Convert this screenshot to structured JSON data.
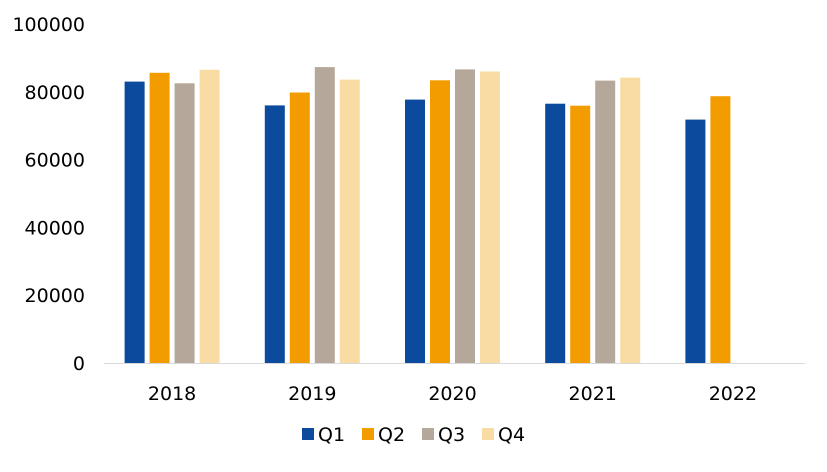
{
  "chart_data": {
    "type": "bar",
    "categories": [
      "2018",
      "2019",
      "2020",
      "2021",
      "2022"
    ],
    "series": [
      {
        "name": "Q1",
        "color": "#0b4a9c",
        "values": [
          83000,
          76000,
          77700,
          76500,
          71800
        ]
      },
      {
        "name": "Q2",
        "color": "#f39c00",
        "values": [
          85600,
          79800,
          83400,
          75900,
          78700
        ]
      },
      {
        "name": "Q3",
        "color": "#b5a89b",
        "values": [
          82500,
          87300,
          86600,
          83300,
          null
        ]
      },
      {
        "name": "Q4",
        "color": "#f9dca3",
        "values": [
          86500,
          83600,
          86000,
          84200,
          null
        ]
      }
    ],
    "ylim": [
      0,
      100000
    ],
    "yticks": [
      "0",
      "20000",
      "40000",
      "60000",
      "80000",
      "100000"
    ],
    "grid": false,
    "legend_position": "bottom"
  }
}
